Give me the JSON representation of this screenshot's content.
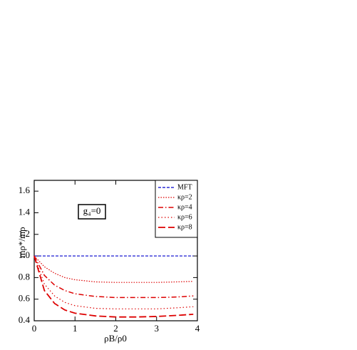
{
  "chart_data": {
    "type": "line",
    "annotation": "g₄=0",
    "x_label": "ρB/ρ0",
    "y_label": "mρ*/mρ",
    "x": [
      0,
      0.25,
      0.5,
      0.75,
      1,
      1.5,
      2,
      2.5,
      3,
      3.5,
      3.9
    ],
    "series": [
      {
        "name": "MFT",
        "color": "#0000cc",
        "values": [
          1.0,
          1.0,
          1.0,
          1.0,
          1.0,
          1.0,
          1.0,
          1.0,
          1.0,
          1.0,
          1.0
        ]
      },
      {
        "name": "κρ=2",
        "color": "#dd0000",
        "values": [
          1.0,
          0.9,
          0.84,
          0.8,
          0.78,
          0.76,
          0.755,
          0.755,
          0.755,
          0.76,
          0.765
        ]
      },
      {
        "name": "κρ=4",
        "color": "#dd0000",
        "values": [
          1.0,
          0.82,
          0.73,
          0.68,
          0.65,
          0.625,
          0.615,
          0.615,
          0.615,
          0.62,
          0.63
        ]
      },
      {
        "name": "κρ=6",
        "color": "#dd0000",
        "values": [
          1.0,
          0.74,
          0.63,
          0.57,
          0.54,
          0.515,
          0.51,
          0.51,
          0.51,
          0.52,
          0.53
        ]
      },
      {
        "name": "κρ=8",
        "color": "#dd0000",
        "values": [
          1.0,
          0.68,
          0.56,
          0.5,
          0.47,
          0.445,
          0.435,
          0.435,
          0.44,
          0.45,
          0.46
        ]
      }
    ],
    "xlim": [
      0,
      4
    ],
    "xticks": [
      0,
      1,
      2,
      3,
      4
    ],
    "ylim": [
      0.4,
      1.7
    ],
    "yticks": [
      0.4,
      0.6,
      0.8,
      {
        "value": 1,
        "label": "1.0"
      },
      1.2,
      1.4,
      1.6
    ],
    "legend": "upper right"
  }
}
